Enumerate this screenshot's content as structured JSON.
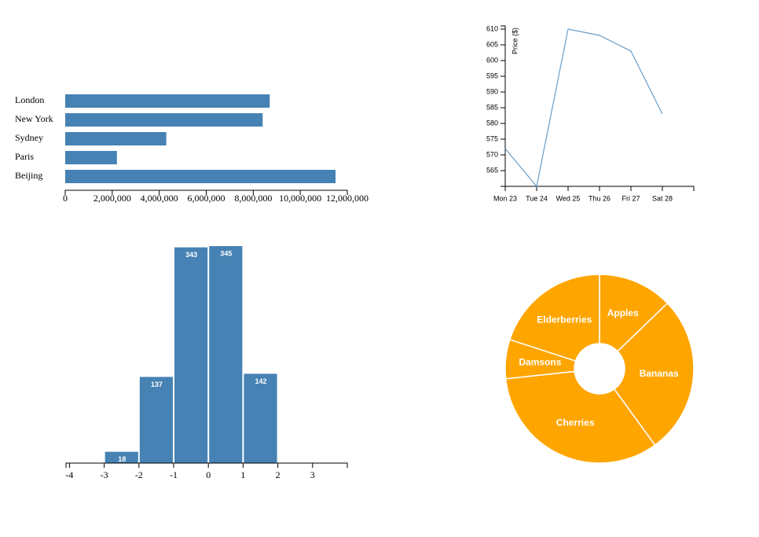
{
  "chart_data": [
    {
      "type": "hbar",
      "categories": [
        "London",
        "New York",
        "Sydney",
        "Paris",
        "Beijing"
      ],
      "values": [
        8700000,
        8400000,
        4300000,
        2200000,
        11500000
      ],
      "color": "#4682b4",
      "xlim": [
        0,
        12000000
      ],
      "xticks": [
        0,
        {
          "value": 2000000,
          "label": "2,000,000"
        },
        {
          "value": 4000000,
          "label": "4,000,000"
        },
        {
          "value": 6000000,
          "label": "6,000,000"
        },
        {
          "value": 8000000,
          "label": "8,000,000"
        },
        {
          "value": 10000000,
          "label": "10,000,000"
        },
        {
          "value": 12000000,
          "label": "12,000,000"
        }
      ]
    },
    {
      "type": "line",
      "categories": [
        "Mon 23",
        "Tue 24",
        "Wed 25",
        "Thu 26",
        "Fri 27",
        "Sat 28"
      ],
      "values": [
        572,
        560,
        610,
        608,
        603,
        583
      ],
      "color": "#6a9ec8",
      "ylabel": "Price ($)",
      "ylim": [
        560,
        611
      ],
      "yticks": [
        565,
        570,
        575,
        580,
        585,
        590,
        595,
        600,
        605,
        610
      ]
    },
    {
      "type": "histogram",
      "bins": [
        -3,
        -2,
        -1,
        0,
        1,
        2
      ],
      "values": [
        18,
        137,
        343,
        345,
        142
      ],
      "color": "#4682b4",
      "xlim": [
        -4.1,
        4
      ],
      "xticks": [
        -4,
        -3,
        -2,
        -1,
        0,
        1,
        2,
        3
      ]
    },
    {
      "type": "pie",
      "categories": [
        "Apples",
        "Bananas",
        "Cherries",
        "Damsons",
        "Elderberries"
      ],
      "values": [
        12.8,
        27.2,
        33.3,
        6.7,
        20
      ],
      "color": "#ffa500"
    }
  ]
}
